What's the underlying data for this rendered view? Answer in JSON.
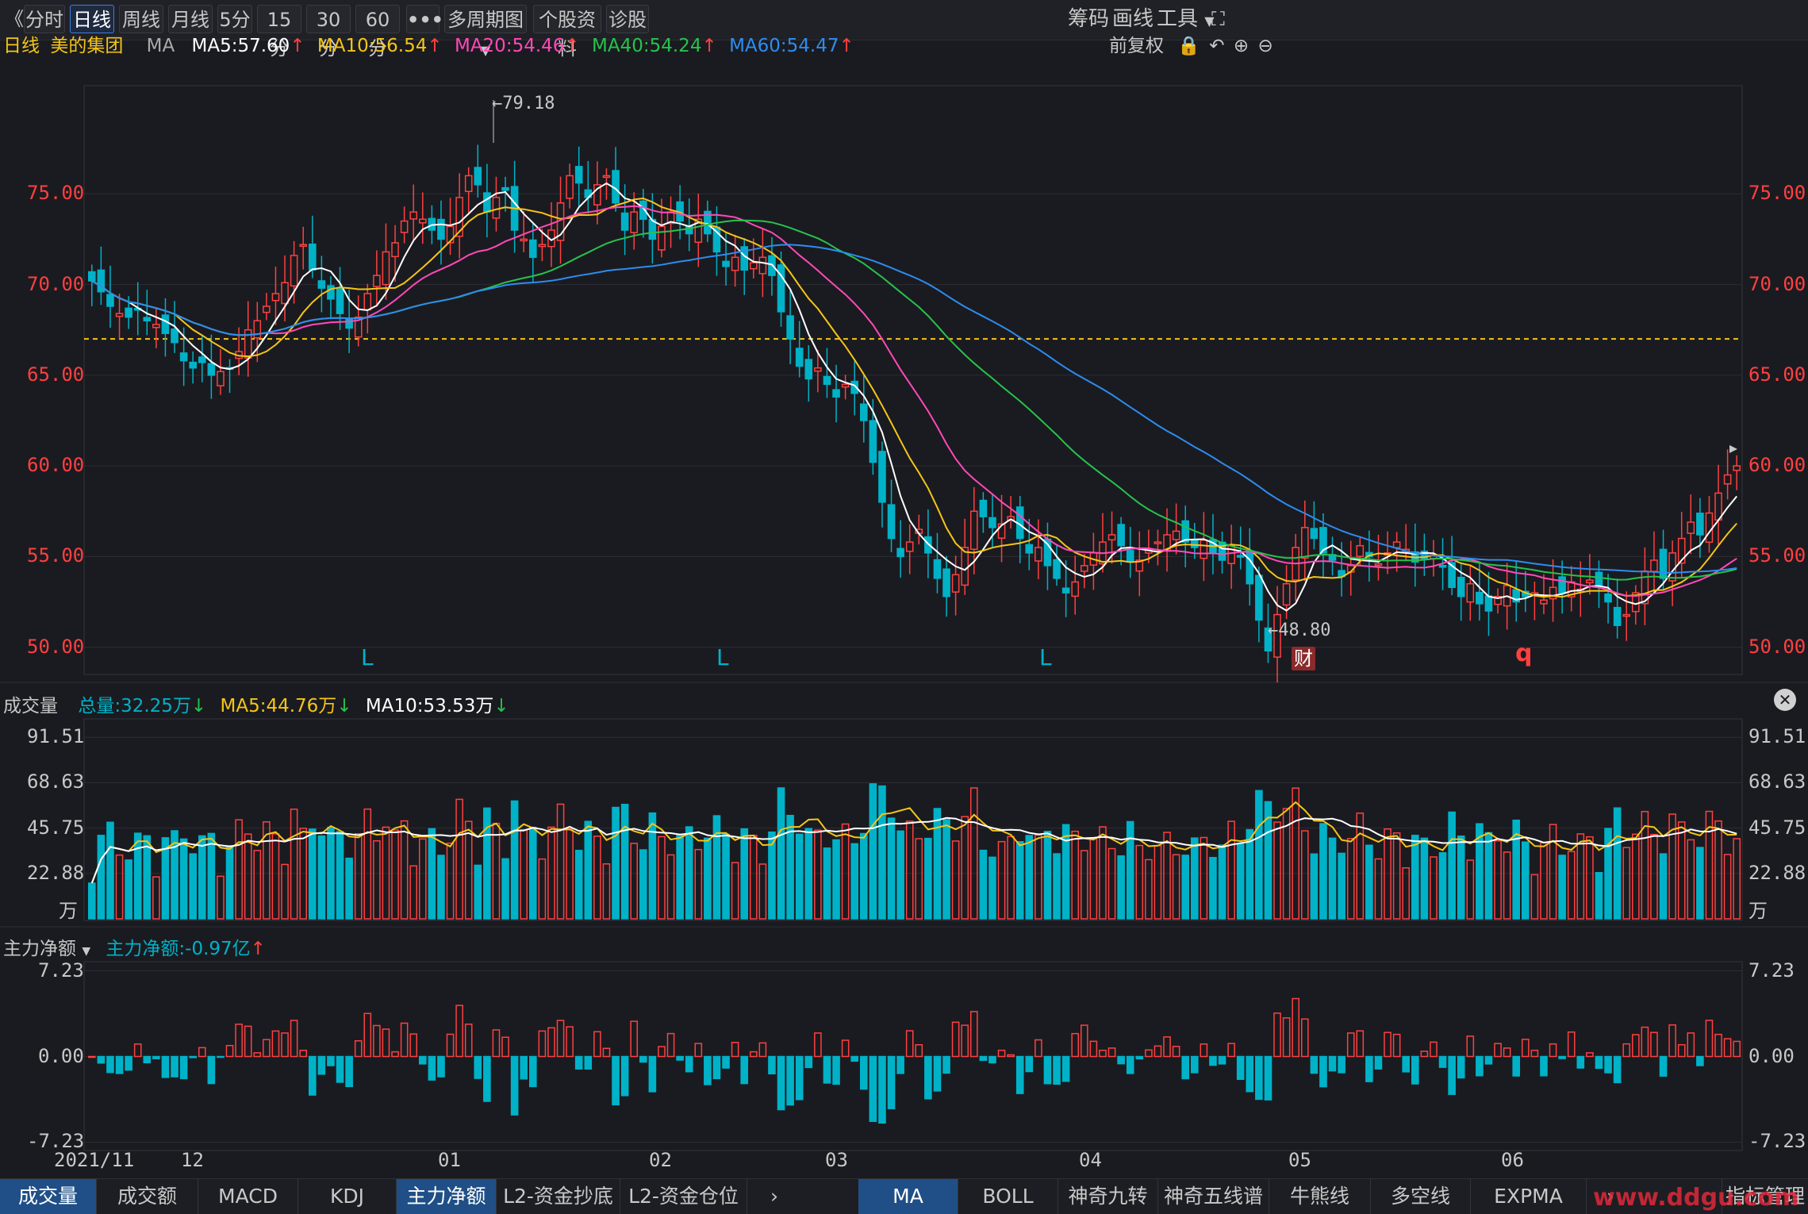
{
  "toolbar": {
    "collapse_icon": "《",
    "tabs": [
      "分时",
      "日线",
      "周线",
      "月线",
      "5分",
      "15分",
      "30分",
      "60分"
    ],
    "active_tab": "日线",
    "more": "•••",
    "multi_period": "多周期图",
    "stock_info": "个股资料",
    "diagnose": "诊股",
    "right": {
      "chips": "筹码",
      "draw": "画线",
      "tools": "工具"
    }
  },
  "header": {
    "period": "日线",
    "stock_name": "美的集团",
    "indicator": "MA",
    "ma5": "MA5:57.60",
    "ma10": "MA10:56.54",
    "ma20": "MA20:54.46",
    "ma40": "MA40:54.24",
    "ma60": "MA60:54.47",
    "adjust": "前复权"
  },
  "price_axis": [
    "75.00",
    "70.00",
    "65.00",
    "60.00",
    "55.00",
    "50.00"
  ],
  "price_annotations": {
    "high": "←79.18",
    "low": "←48.80"
  },
  "markers": {
    "L1": "L",
    "L2": "L",
    "L3": "L",
    "cai": "财",
    "q": "q"
  },
  "volume": {
    "title": "成交量",
    "total": "总量:32.25万",
    "ma5": "MA5:44.76万",
    "ma10": "MA10:53.53万",
    "axis": [
      "91.51",
      "68.63",
      "45.75",
      "22.88",
      "万"
    ]
  },
  "netflow": {
    "title": "主力净额",
    "value": "主力净额:-0.97亿",
    "axis": [
      "7.23",
      "0.00",
      "-7.23"
    ]
  },
  "date_axis": [
    "2021/11",
    "12",
    "01",
    "02",
    "03",
    "04",
    "05",
    "06"
  ],
  "bottom_tabs_left": [
    "成交量",
    "成交额",
    "MACD",
    "KDJ",
    "主力净额",
    "L2-资金抄底",
    "L2-资金仓位"
  ],
  "bottom_tabs_right": [
    "MA",
    "BOLL",
    "神奇九转",
    "神奇五线谱",
    "牛熊线",
    "多空线",
    "EXPMA"
  ],
  "bottom_right_button": "指标管理",
  "watermark": "www.ddgu.com",
  "colors": {
    "up": "#ff4040",
    "down": "#00b2c8",
    "ma5": "#ffffff",
    "ma10": "#f5c518",
    "ma20": "#ff49b8",
    "ma40": "#27c24c",
    "ma60": "#2d8cf0",
    "dash": "#f5c518"
  },
  "chart_data": {
    "type": "candlestick",
    "price_range": [
      48.5,
      80
    ],
    "price_ticks": [
      75,
      70,
      65,
      60,
      55,
      50
    ],
    "high_label": 79.18,
    "low_label": 48.8,
    "reference_line": 67.0,
    "closes": [
      70.2,
      69.6,
      68.8,
      68.4,
      68.2,
      68.6,
      68.0,
      67.8,
      67.3,
      66.8,
      65.8,
      65.4,
      65.7,
      65.0,
      65.2,
      65.4,
      66.3,
      67.5,
      68.0,
      68.8,
      69.5,
      70.1,
      71.6,
      72.2,
      70.8,
      69.8,
      69.2,
      68.4,
      67.6,
      68.2,
      69.5,
      70.5,
      71.8,
      72.3,
      73.5,
      74.0,
      73.6,
      73.0,
      72.5,
      73.2,
      74.8,
      76.0,
      75.5,
      74.0,
      74.8,
      75.2,
      73.0,
      72.5,
      71.5,
      72.2,
      73.0,
      74.5,
      76.0,
      75.6,
      74.8,
      75.5,
      76.0,
      74.5,
      73.0,
      74.0,
      73.6,
      72.5,
      73.2,
      74.0,
      73.5,
      72.8,
      73.6,
      72.8,
      71.8,
      71.0,
      71.5,
      70.8,
      71.2,
      71.5,
      70.5,
      68.5,
      67.0,
      65.5,
      64.8,
      65.4,
      64.5,
      63.8,
      64.5,
      64.0,
      62.5,
      60.2,
      58.0,
      56.0,
      55.0,
      55.8,
      56.5,
      55.2,
      53.8,
      52.8,
      54.0,
      55.5,
      57.5,
      57.2,
      56.6,
      56.8,
      57.2,
      56.0,
      55.2,
      55.5,
      54.5,
      53.8,
      53.0,
      53.6,
      54.5,
      55.2,
      55.8,
      56.2,
      55.6,
      54.7,
      54.8,
      55.4,
      55.8,
      56.2,
      56.4,
      55.8,
      55.5,
      55.9,
      55.2,
      54.8,
      55.6,
      55.0,
      53.5,
      51.5,
      49.8,
      51.8,
      53.5,
      55.5,
      56.6,
      56.0,
      55.2,
      54.8,
      53.9,
      54.5,
      55.6,
      55.0,
      54.6,
      55.2,
      55.8,
      55.4,
      54.7,
      54.9,
      55.1,
      54.5,
      53.3,
      52.8,
      53.5,
      52.4,
      52.0,
      52.8,
      53.4,
      52.5,
      52.8,
      53.0,
      52.6,
      53.3,
      53.0,
      53.6,
      53.2,
      53.7,
      53.4,
      52.5,
      51.2,
      51.8,
      53.0,
      54.2,
      54.8,
      53.8,
      55.2,
      56.0,
      56.9,
      56.2,
      57.4,
      58.5,
      59.5,
      60.0
    ],
    "volume_axis": [
      91.51,
      68.63,
      45.75,
      22.88
    ],
    "volume_unit": "万",
    "netflow_axis": [
      7.23,
      0.0,
      -7.23
    ],
    "date_ticks": [
      "2021/11",
      "12",
      "01",
      "02",
      "03",
      "04",
      "05",
      "06"
    ]
  }
}
